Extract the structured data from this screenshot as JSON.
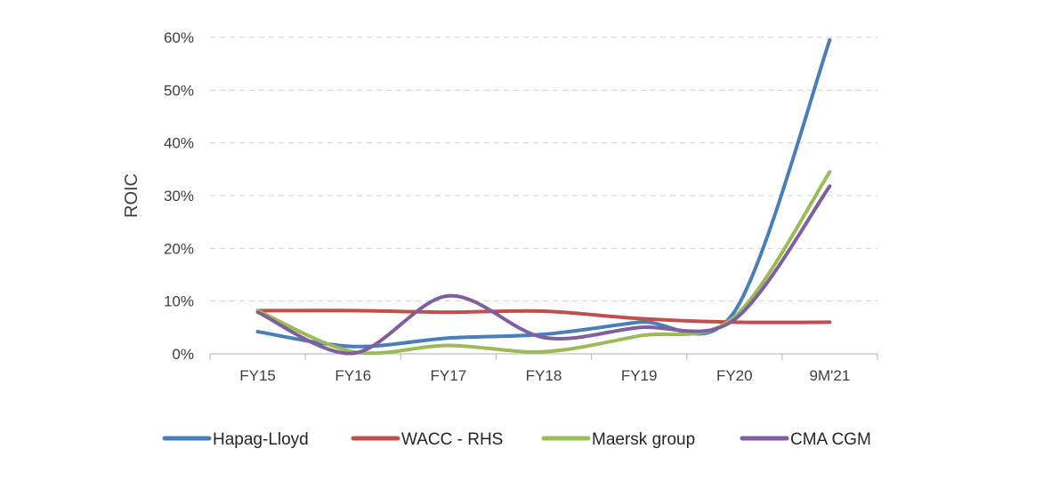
{
  "chart_data": {
    "type": "line",
    "title": "",
    "xlabel": "",
    "ylabel": "ROIC",
    "categories": [
      "FY15",
      "FY16",
      "FY17",
      "FY18",
      "FY19",
      "FY20",
      "9M'21"
    ],
    "ylim": [
      0,
      60
    ],
    "yticks": [
      0,
      10,
      20,
      30,
      40,
      50,
      60
    ],
    "ytick_suffix": "%",
    "grid": true,
    "smooth": true,
    "legend_position": "bottom",
    "series": [
      {
        "name": "Hapag-Lloyd",
        "color": "#4a7ebb",
        "values": [
          4.2,
          1.4,
          3.0,
          3.7,
          6.0,
          8.0,
          59.5
        ]
      },
      {
        "name": "WACC - RHS",
        "color": "#c0504d",
        "values": [
          8.2,
          8.2,
          7.9,
          8.1,
          6.7,
          6.0,
          6.0
        ]
      },
      {
        "name": "Maersk group",
        "color": "#9bbb59",
        "values": [
          8.2,
          0.4,
          1.6,
          0.4,
          3.4,
          7.0,
          34.5
        ]
      },
      {
        "name": "CMA CGM",
        "color": "#7f5f9f",
        "values": [
          7.9,
          0.1,
          11.0,
          3.1,
          5.0,
          6.5,
          31.8
        ]
      }
    ]
  }
}
